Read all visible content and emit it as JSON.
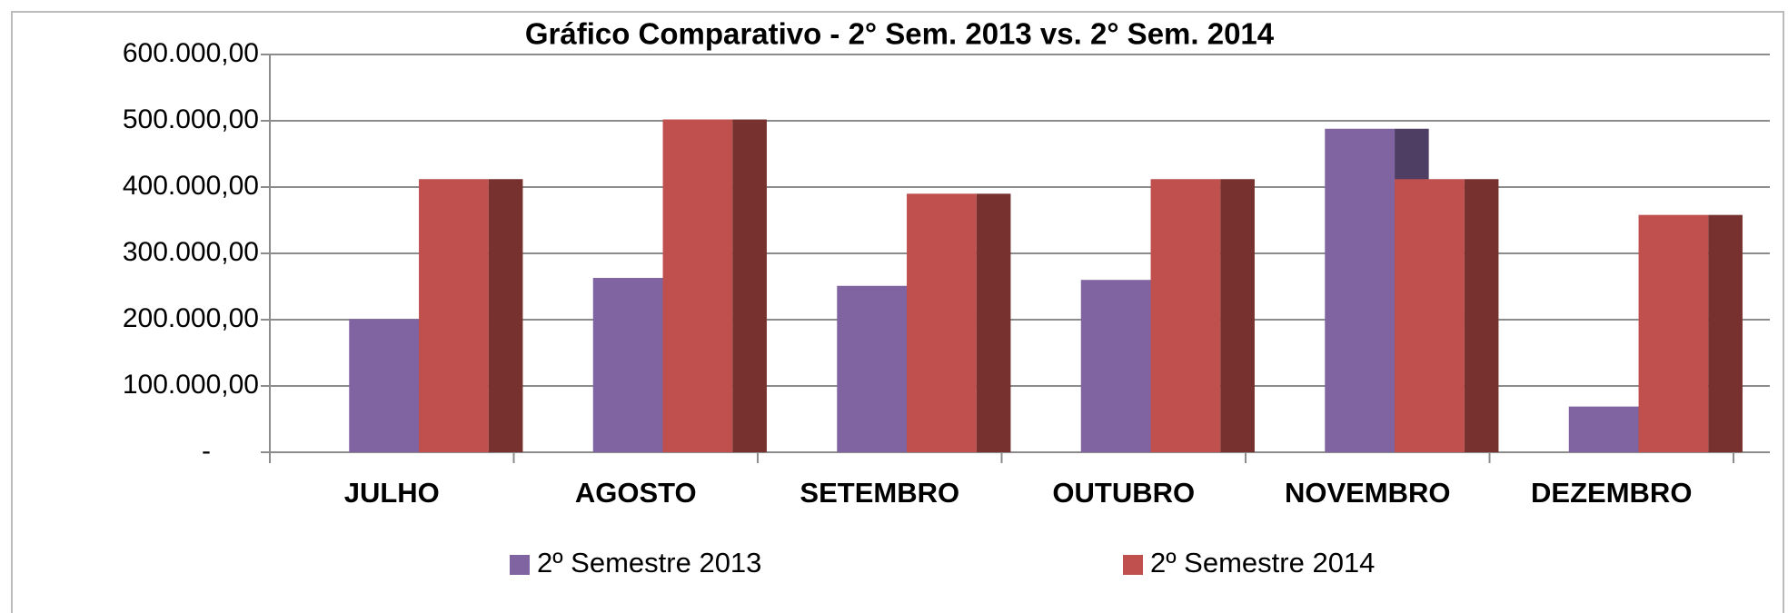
{
  "chart_data": {
    "type": "bar3d",
    "title": "Gráfico Comparativo - 2° Sem. 2013 vs. 2° Sem. 2014",
    "categories": [
      "JULHO",
      "AGOSTO",
      "SETEMBRO",
      "OUTUBRO",
      "NOVEMBRO",
      "DEZEMBRO"
    ],
    "series": [
      {
        "name": "2º Semestre 2013",
        "color": "#8064a2",
        "values": [
          201000,
          263000,
          251000,
          260000,
          488000,
          69000
        ]
      },
      {
        "name": "2º Semestre 2014",
        "color": "#c0504d",
        "values": [
          412000,
          502000,
          390000,
          412000,
          412000,
          358000
        ]
      }
    ],
    "ylim": [
      0,
      600000
    ],
    "yticks": [
      {
        "value": 0,
        "label": "-"
      },
      {
        "value": 100000,
        "label": "100.000,00"
      },
      {
        "value": 200000,
        "label": "200.000,00"
      },
      {
        "value": 300000,
        "label": "300.000,00"
      },
      {
        "value": 400000,
        "label": "400.000,00"
      },
      {
        "value": 500000,
        "label": "500.000,00"
      },
      {
        "value": 600000,
        "label": "600.000,00"
      }
    ],
    "grid": true,
    "legend": "bottom"
  }
}
